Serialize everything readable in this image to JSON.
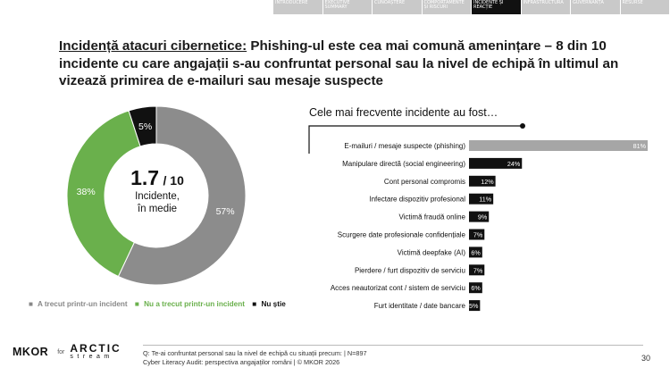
{
  "nav": {
    "tabs": [
      {
        "label": "INTRODUCERE",
        "active": false
      },
      {
        "label": "EXECUTIVE SUMMARY",
        "active": false
      },
      {
        "label": "CUNOAȘTERE",
        "active": false
      },
      {
        "label": "COMPORTAMENTE ȘI RISCURI",
        "active": false
      },
      {
        "label": "INCIDENTE ȘI REACȚIE",
        "active": true
      },
      {
        "label": "INFRASTRUCTURĂ",
        "active": false
      },
      {
        "label": "GUVERNANȚĂ",
        "active": false
      },
      {
        "label": "RESURSE",
        "active": false
      }
    ]
  },
  "headline": {
    "key": "Incidență atacuri cibernetice:",
    "text": " Phishing-ul este cea mai comună amenințare – 8 din 10 incidente cu care angajații s-au confruntat personal sau la nivel de echipă în ultimul an vizează primirea de e-mailuri sau mesaje suspecte"
  },
  "colors": {
    "grey": "#8c8c8c",
    "green": "#6ab04c",
    "black": "#111111",
    "highlight_bar": "#a6a6a6"
  },
  "chart_data": [
    {
      "type": "pie",
      "center": {
        "value": "1.7",
        "suffix": "/ 10",
        "label_line1": "Incidente,",
        "label_line2": "în medie"
      },
      "slices": [
        {
          "name": "A trecut printr-un incident",
          "value": 57,
          "label": "57%",
          "color": "#8c8c8c"
        },
        {
          "name": "Nu a trecut printr-un incident",
          "value": 38,
          "label": "38%",
          "color": "#6ab04c"
        },
        {
          "name": "Nu știe",
          "value": 5,
          "label": "5%",
          "color": "#111111"
        }
      ],
      "legend": [
        {
          "marker": "■",
          "text": "A trecut printr-un incident",
          "color": "#888888"
        },
        {
          "marker": "■",
          "text": "Nu a trecut printr-un incident",
          "color": "#6ab04c"
        },
        {
          "marker": "■",
          "text": "Nu știe",
          "color": "#111111"
        }
      ]
    },
    {
      "type": "bar",
      "title": "Cele mai frecvente incidente au fost…",
      "orientation": "horizontal",
      "categories": [
        "E-mailuri / mesaje suspecte (phishing)",
        "Manipulare directă (social engineering)",
        "Cont personal compromis",
        "Infectare dispozitiv profesional",
        "Victimă fraudă online",
        "Scurgere date profesionale confidențiale",
        "Victimă deepfake (AI)",
        "Pierdere / furt dispozitiv de serviciu",
        "Acces neautorizat cont / sistem de serviciu",
        "Furt identitate / date bancare"
      ],
      "values": [
        81,
        24,
        12,
        11,
        9,
        7,
        6,
        7,
        6,
        5
      ],
      "labels": [
        "81%",
        "24%",
        "12%",
        "11%",
        "9%",
        "7%",
        "6%",
        "7%",
        "6%",
        "5%"
      ],
      "highlight_index": 0
    }
  ],
  "footer": {
    "logo_left": "MKOR",
    "logo_for": "for",
    "logo_arctic": "ARCTIC",
    "logo_stream": "stream",
    "note_line1": "Q: Te-ai confruntat personal sau la nivel de echipă cu situații precum: | N=897",
    "note_line2": "Cyber Literacy Audit: perspectiva angajaților români | © MKOR 2026",
    "page": "30"
  }
}
